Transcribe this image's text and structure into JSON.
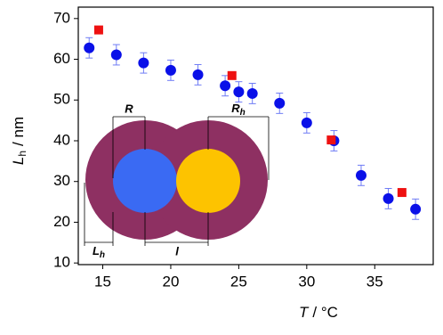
{
  "chart_data": {
    "type": "scatter",
    "x_label": {
      "symbol": "T",
      "unit": "/ °C"
    },
    "y_label": {
      "symbol": "L",
      "subscript": "h",
      "unit": "/ nm"
    },
    "xlim": [
      13.2,
      39.3
    ],
    "xticks": [
      15,
      20,
      25,
      30,
      35
    ],
    "ylim": [
      9.6,
      72.8
    ],
    "yticks": [
      10,
      20,
      30,
      40,
      50,
      60,
      70
    ],
    "grid": false,
    "series": [
      {
        "marker": "circle",
        "color": "#0a10e8",
        "error_color": "#6f7cf5",
        "x": [
          14,
          16,
          18,
          20,
          22,
          24,
          25,
          26,
          28,
          30,
          32,
          34,
          36,
          38
        ],
        "values": [
          62.8,
          61.1,
          59.1,
          57.3,
          56.2,
          53.5,
          52.0,
          51.6,
          49.2,
          44.4,
          40.0,
          31.5,
          25.8,
          23.2
        ],
        "errors": [
          2.5,
          2.5,
          2.5,
          2.5,
          2.5,
          2.5,
          2.5,
          2.5,
          2.5,
          2.5,
          2.5,
          2.5,
          2.5,
          2.5
        ]
      },
      {
        "marker": "square",
        "color": "#ee1111",
        "x": [
          14.7,
          24.5,
          31.8,
          37
        ],
        "values": [
          67.2,
          56.0,
          40.2,
          27.3
        ]
      }
    ]
  },
  "inset": {
    "labels": {
      "R": "R",
      "Rh": {
        "symbol": "R",
        "subscript": "h"
      },
      "Lh": {
        "symbol": "L",
        "subscript": "h"
      },
      "l": "l"
    }
  }
}
